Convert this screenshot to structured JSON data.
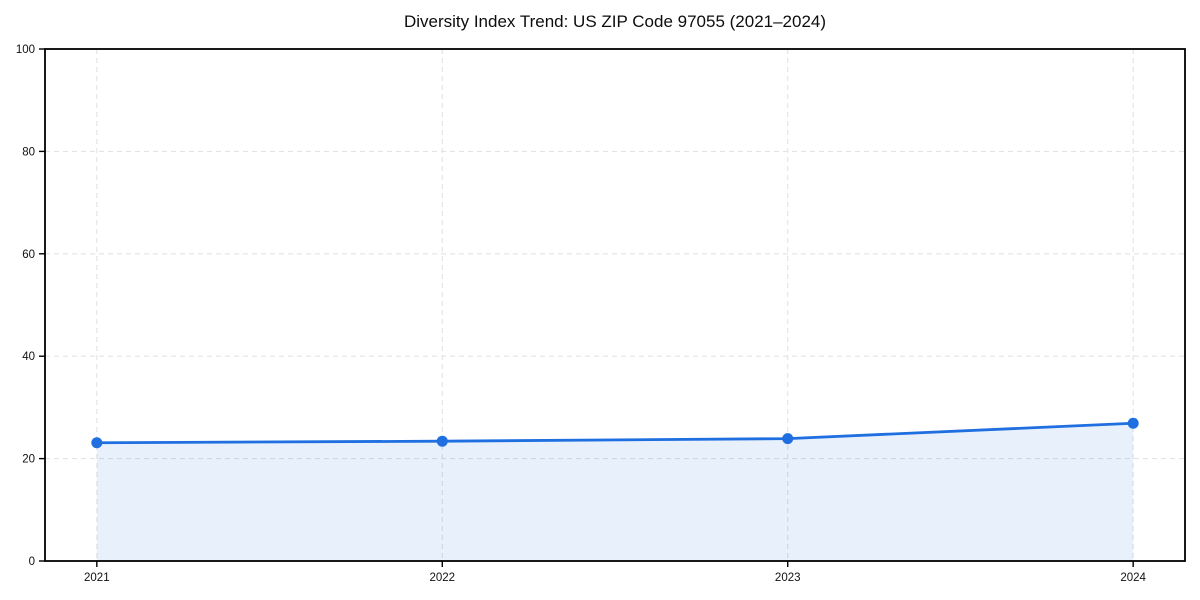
{
  "chart_data": {
    "type": "area",
    "title": "Diversity Index Trend: US ZIP Code 97055 (2021–2024)",
    "x": [
      2021,
      2022,
      2023,
      2024
    ],
    "categories": [
      "2021",
      "2022",
      "2023",
      "2024"
    ],
    "values": [
      23.1,
      23.4,
      23.9,
      26.9
    ],
    "xlabel": "",
    "ylabel": "",
    "ylim": [
      0,
      100
    ],
    "yticks": [
      0,
      20,
      40,
      60,
      80,
      100
    ],
    "xlim": [
      2020.85,
      2024.15
    ],
    "grid": true,
    "grid_style": "dashed",
    "legend": "none",
    "line_color": "#1f6fe0",
    "marker": "circle",
    "fill_color": "#1f6fe0",
    "fill_opacity": 0.1,
    "grid_color": "#e3e3e3",
    "spine_color": "#000000",
    "text_color": "#111111"
  }
}
